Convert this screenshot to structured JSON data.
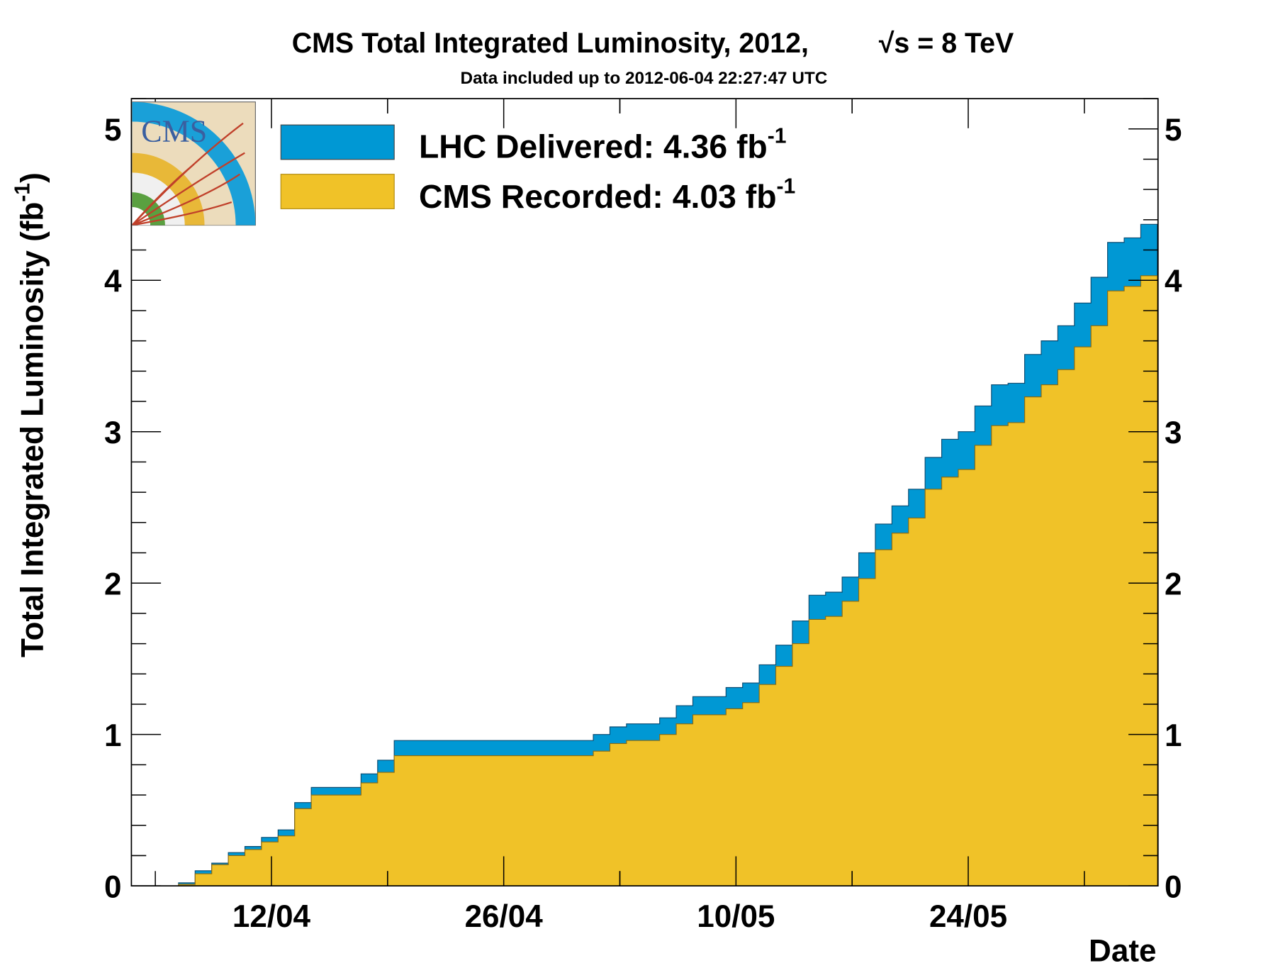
{
  "chart_data": {
    "type": "area",
    "title": "CMS Total Integrated Luminosity, 2012,",
    "title_energy": "√s = 8 TeV",
    "subtitle": "Data included up to 2012-06-04 22:27:47 UTC",
    "xlabel": "Date",
    "ylabel": "Total Integrated Luminosity (fb",
    "ylabel_sup": "-1",
    "ylabel_close": ")",
    "ylim": [
      0,
      5.2
    ],
    "yticks": [
      "0",
      "1",
      "2",
      "3",
      "4",
      "5"
    ],
    "xticks": [
      {
        "label": "12/04",
        "day": 7.6
      },
      {
        "label": "26/04",
        "day": 21.6
      },
      {
        "label": "10/05",
        "day": 35.6
      },
      {
        "label": "24/05",
        "day": 49.6
      }
    ],
    "x_start_date": "2012-04-05",
    "x_days": 61,
    "legend_position": "top-left",
    "series": [
      {
        "name": "LHC Delivered",
        "legend_label": "LHC Delivered: 4.36 fb",
        "legend_sup": "-1",
        "color": "#0098d4",
        "values": [
          0,
          0,
          0.02,
          0.1,
          0.15,
          0.22,
          0.26,
          0.32,
          0.37,
          0.55,
          0.65,
          0.65,
          0.65,
          0.74,
          0.83,
          0.96,
          0.96,
          0.96,
          0.96,
          0.96,
          0.96,
          0.96,
          0.96,
          0.96,
          0.96,
          0.96,
          0.96,
          1.0,
          1.05,
          1.07,
          1.07,
          1.11,
          1.19,
          1.25,
          1.25,
          1.31,
          1.34,
          1.46,
          1.59,
          1.75,
          1.92,
          1.94,
          2.04,
          2.2,
          2.39,
          2.51,
          2.62,
          2.83,
          2.95,
          3.0,
          3.17,
          3.31,
          3.32,
          3.51,
          3.6,
          3.7,
          3.85,
          4.02,
          4.25,
          4.28,
          4.37
        ]
      },
      {
        "name": "CMS Recorded",
        "legend_label": "CMS Recorded: 4.03 fb",
        "legend_sup": "-1",
        "color": "#f0c228",
        "values": [
          0,
          0,
          0.01,
          0.08,
          0.14,
          0.2,
          0.24,
          0.29,
          0.33,
          0.51,
          0.6,
          0.6,
          0.6,
          0.68,
          0.75,
          0.86,
          0.86,
          0.86,
          0.86,
          0.86,
          0.86,
          0.86,
          0.86,
          0.86,
          0.86,
          0.86,
          0.86,
          0.89,
          0.94,
          0.96,
          0.96,
          1.0,
          1.07,
          1.13,
          1.13,
          1.17,
          1.21,
          1.33,
          1.45,
          1.6,
          1.76,
          1.78,
          1.88,
          2.03,
          2.22,
          2.33,
          2.43,
          2.62,
          2.7,
          2.75,
          2.91,
          3.04,
          3.06,
          3.23,
          3.31,
          3.41,
          3.56,
          3.7,
          3.93,
          3.96,
          4.03
        ]
      }
    ],
    "logo_text": "CMS"
  }
}
